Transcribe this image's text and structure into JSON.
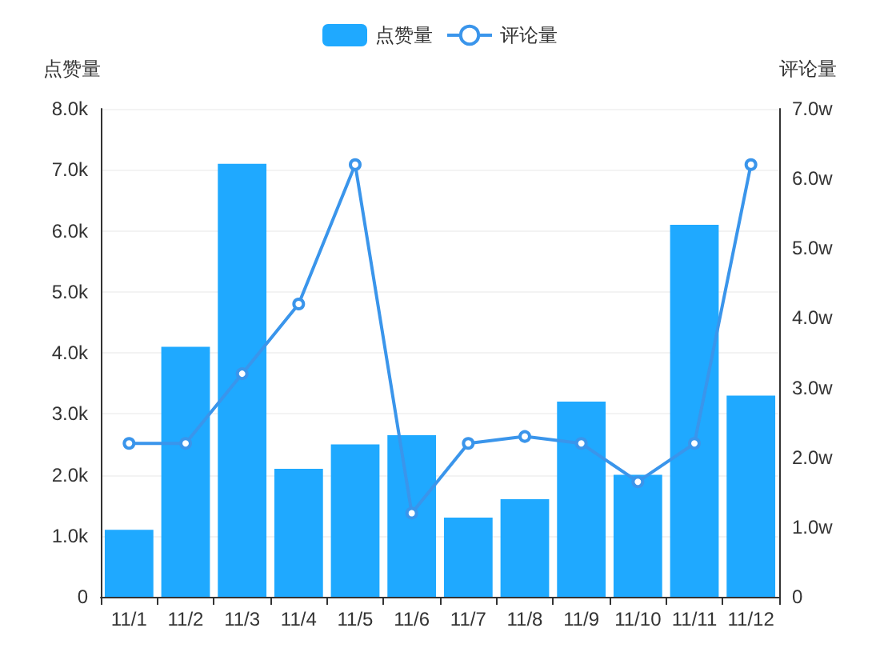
{
  "chart_data": {
    "type": "bar",
    "categories": [
      "11/1",
      "11/2",
      "11/3",
      "11/4",
      "11/5",
      "11/6",
      "11/7",
      "11/8",
      "11/9",
      "11/10",
      "11/11",
      "11/12"
    ],
    "series": [
      {
        "name": "点赞量",
        "color": "#1fa9ff",
        "values": [
          1100,
          4100,
          7100,
          2100,
          2500,
          2650,
          1300,
          1600,
          3200,
          2000,
          6100,
          3300
        ]
      },
      {
        "name": "评论量",
        "type": "line",
        "axis": "y2",
        "color": "#3a95eb",
        "values": [
          2.2,
          2.2,
          3.2,
          4.2,
          6.2,
          1.2,
          2.2,
          2.3,
          2.2,
          1.65,
          2.2,
          6.2
        ]
      }
    ],
    "ylabel": "点赞量",
    "y2label": "评论量",
    "ylim": [
      0,
      8000
    ],
    "yticks": [
      0,
      {
        "value": 1000,
        "label": "1.0k"
      },
      {
        "value": 2000,
        "label": "2.0k"
      },
      {
        "value": 3000,
        "label": "3.0k"
      },
      {
        "value": 4000,
        "label": "4.0k"
      },
      {
        "value": 5000,
        "label": "5.0k"
      },
      {
        "value": 6000,
        "label": "6.0k"
      },
      {
        "value": 7000,
        "label": "7.0k"
      },
      {
        "value": 8000,
        "label": "8.0k"
      }
    ],
    "y2lim": [
      0,
      7
    ],
    "y2ticks": [
      0,
      {
        "value": 1,
        "label": "1.0w"
      },
      {
        "value": 2,
        "label": "2.0w"
      },
      {
        "value": 3,
        "label": "3.0w"
      },
      {
        "value": 4,
        "label": "4.0w"
      },
      {
        "value": 5,
        "label": "5.0w"
      },
      {
        "value": 6,
        "label": "6.0w"
      },
      {
        "value": 7,
        "label": "7.0w"
      }
    ],
    "grid": "y",
    "legend": "top",
    "marker": "circle",
    "line_style": "solid"
  }
}
